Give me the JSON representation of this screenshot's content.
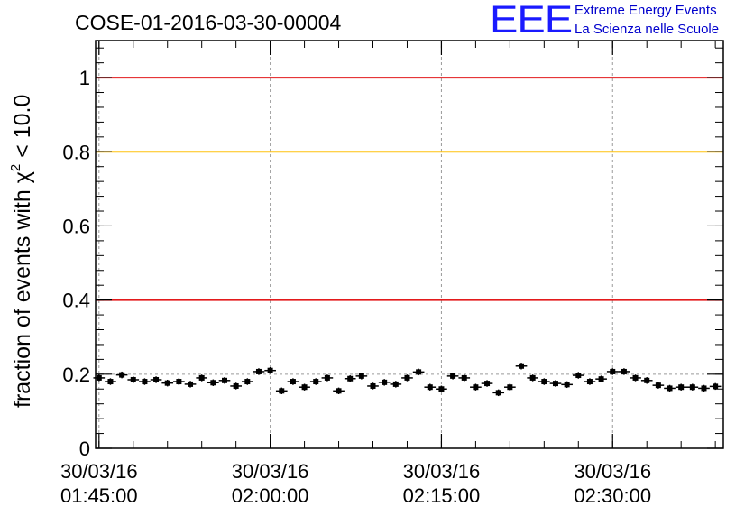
{
  "logo": {
    "mark": "EEE",
    "line1": "Extreme Energy Events",
    "line2": "La Scienza nelle Scuole"
  },
  "chart_data": {
    "type": "scatter",
    "title": "COSE-01-2016-03-30-00004",
    "ylabel": "fraction of events with χ² < 10.0",
    "ylabel_main": "fraction of events with χ",
    "ylabel_sup": "2",
    "ylabel_tail": " < 10.0",
    "xlabel": "",
    "ylim": [
      0,
      1.1
    ],
    "xlim_minutes": [
      -0.3,
      54.7
    ],
    "x_ticks": [
      {
        "minute": 0,
        "date": "30/03/16",
        "time": "01:45:00"
      },
      {
        "minute": 15,
        "date": "30/03/16",
        "time": "02:00:00"
      },
      {
        "minute": 30,
        "date": "30/03/16",
        "time": "02:15:00"
      },
      {
        "minute": 45,
        "date": "30/03/16",
        "time": "02:30:00"
      }
    ],
    "y_ticks": [
      "0",
      "0.2",
      "0.4",
      "0.6",
      "0.8",
      "1"
    ],
    "y_tick_values": [
      0,
      0.2,
      0.4,
      0.6,
      0.8,
      1
    ],
    "reference_lines": [
      {
        "y": 1.0,
        "color": "#e31a1c"
      },
      {
        "y": 0.8,
        "color": "#ffc20e"
      },
      {
        "y": 0.4,
        "color": "#e31a1c"
      }
    ],
    "grid": true,
    "marker_color": "#000000",
    "x": [
      0,
      1,
      2,
      3,
      4,
      5,
      6,
      7,
      8,
      9,
      10,
      11,
      12,
      13,
      14,
      15,
      16,
      17,
      18,
      19,
      20,
      21,
      22,
      23,
      24,
      25,
      26,
      27,
      28,
      29,
      30,
      31,
      32,
      33,
      34,
      35,
      36,
      37,
      38,
      39,
      40,
      41,
      42,
      43,
      44,
      45,
      46,
      47,
      48,
      49,
      50,
      51,
      52,
      53,
      54
    ],
    "y": [
      0.19,
      0.18,
      0.198,
      0.185,
      0.18,
      0.185,
      0.176,
      0.18,
      0.173,
      0.19,
      0.177,
      0.183,
      0.168,
      0.18,
      0.207,
      0.21,
      0.155,
      0.18,
      0.165,
      0.18,
      0.19,
      0.155,
      0.188,
      0.195,
      0.168,
      0.178,
      0.173,
      0.19,
      0.206,
      0.165,
      0.16,
      0.195,
      0.19,
      0.165,
      0.175,
      0.15,
      0.165,
      0.222,
      0.19,
      0.18,
      0.175,
      0.172,
      0.197,
      0.18,
      0.187,
      0.207,
      0.207,
      0.19,
      0.183,
      0.17,
      0.162,
      0.165,
      0.165,
      0.162,
      0.167
    ],
    "y_err": 0.009
  }
}
